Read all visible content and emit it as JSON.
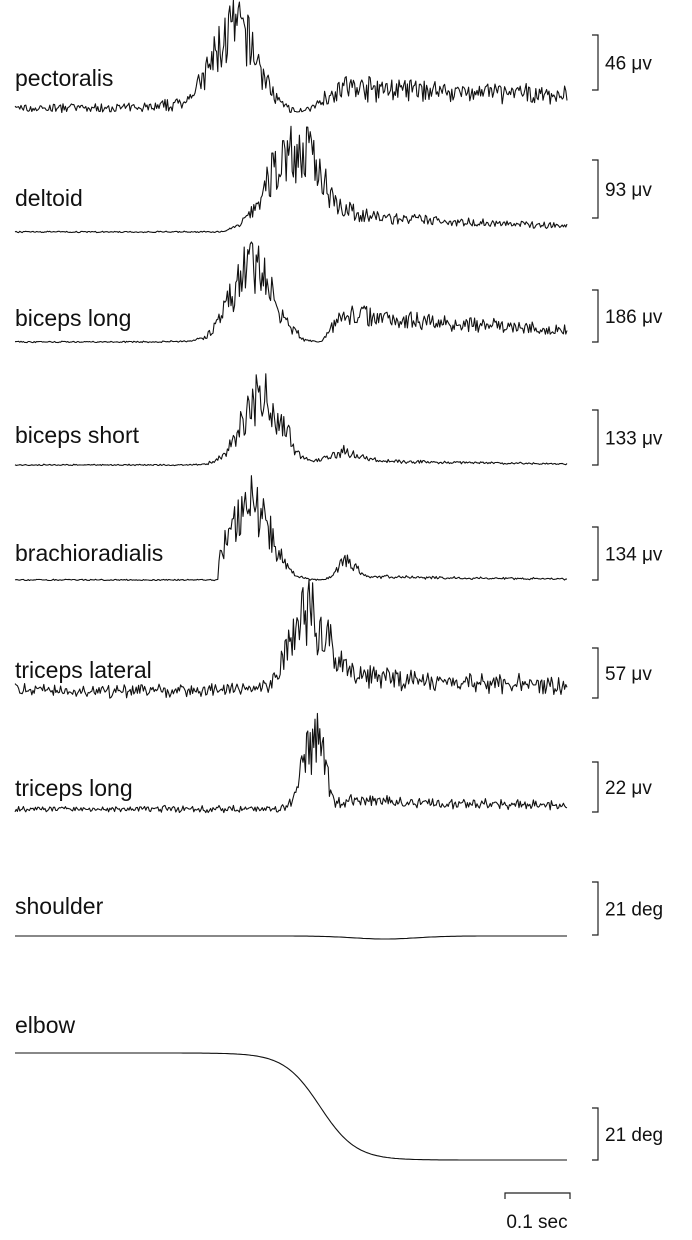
{
  "traces": [
    {
      "label": "pectoralis",
      "scale": "46 μv"
    },
    {
      "label": "deltoid",
      "scale": "93 μv"
    },
    {
      "label": "biceps long",
      "scale": "186 μv"
    },
    {
      "label": "biceps short",
      "scale": "133 μv"
    },
    {
      "label": "brachioradialis",
      "scale": "134 μv"
    },
    {
      "label": "triceps lateral",
      "scale": "57 μv"
    },
    {
      "label": "triceps long",
      "scale": "22 μv"
    },
    {
      "label": "shoulder",
      "scale": "21 deg"
    },
    {
      "label": "elbow",
      "scale": "21 deg"
    }
  ],
  "time_scale": "0.1 sec"
}
